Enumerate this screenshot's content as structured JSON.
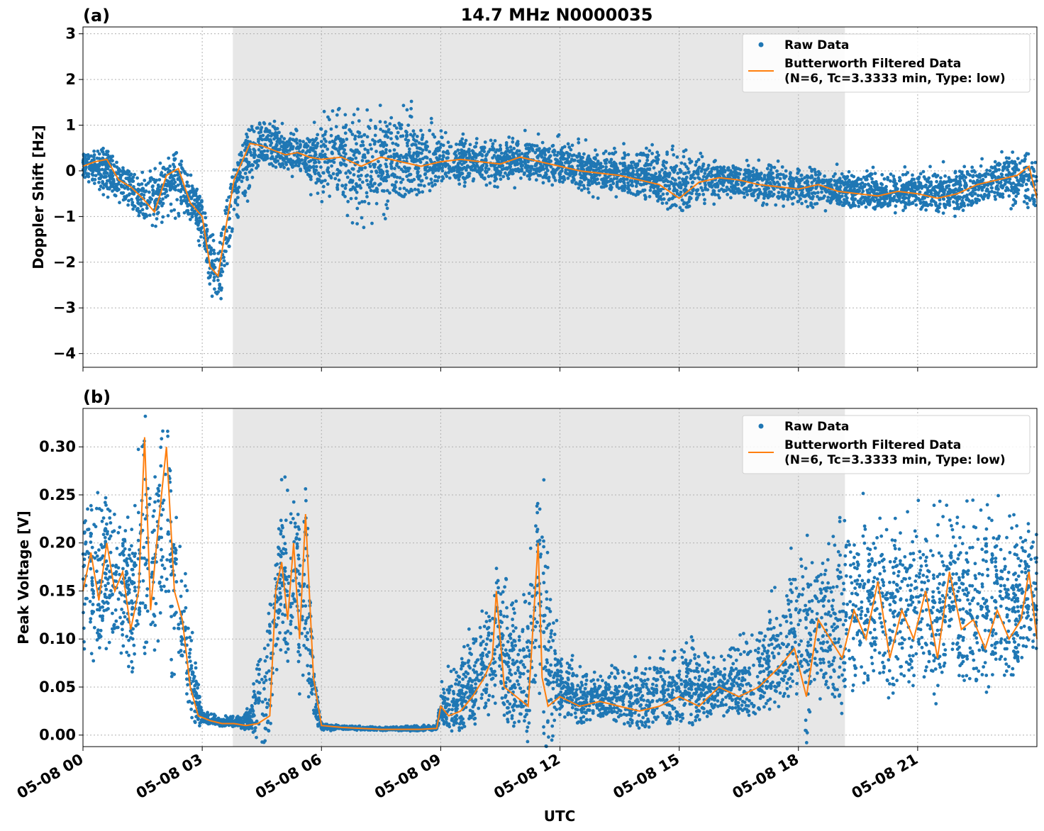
{
  "figure": {
    "title": "14.7 MHz N0000035",
    "xlabel": "UTC",
    "x_ticks": [
      "05-08 00",
      "05-08 03",
      "05-08 06",
      "05-08 09",
      "05-08 12",
      "05-08 15",
      "05-08 18",
      "05-08 21"
    ]
  },
  "colors": {
    "raw": "#1f77b4",
    "filtered": "#ff7f0e",
    "shade": "#e7e7e7",
    "grid": "#b0b0b0"
  },
  "chart_data": [
    {
      "type": "scatter",
      "panel_label": "(a)",
      "ylabel": "Doppler Shift [Hz]",
      "xlim_hours": [
        0,
        24
      ],
      "ylim": [
        -4.3,
        3.15
      ],
      "y_ticks": [
        3,
        2,
        1,
        0,
        -1,
        -2,
        -3,
        -4
      ],
      "y_tick_labels": [
        "3",
        "2",
        "1",
        "0",
        "−1",
        "−2",
        "−3",
        "−4"
      ],
      "shaded_span_hours": [
        3.77,
        19.17
      ],
      "grid": true,
      "legend": {
        "position": "top-right",
        "entries": [
          "Raw Data",
          "Butterworth Filtered Data",
          "(N=6, Tc=3.3333 min, Type: low)"
        ]
      },
      "series": [
        {
          "name": "Butterworth Filtered Data",
          "style": "line",
          "x_hours": [
            0,
            0.3,
            0.6,
            0.9,
            1.2,
            1.5,
            1.8,
            2.1,
            2.4,
            2.7,
            3.0,
            3.2,
            3.4,
            3.6,
            3.8,
            4.0,
            4.2,
            4.5,
            4.8,
            5.1,
            5.4,
            5.7,
            6.0,
            6.5,
            7.0,
            7.5,
            8.0,
            8.5,
            9.0,
            9.5,
            10.0,
            10.5,
            11.0,
            11.5,
            12.0,
            12.5,
            13.0,
            13.5,
            14.0,
            14.5,
            15.0,
            15.5,
            16.0,
            16.5,
            17.0,
            17.5,
            18.0,
            18.5,
            19.0,
            19.5,
            20.0,
            20.5,
            21.0,
            21.5,
            22.0,
            22.5,
            23.0,
            23.5,
            23.8,
            24.0
          ],
          "y": [
            0.1,
            0.2,
            0.25,
            -0.2,
            -0.35,
            -0.6,
            -0.9,
            -0.1,
            0.05,
            -0.7,
            -1.0,
            -2.1,
            -2.3,
            -1.2,
            -0.2,
            0.2,
            0.6,
            0.55,
            0.45,
            0.35,
            0.4,
            0.3,
            0.25,
            0.3,
            0.1,
            0.3,
            0.2,
            0.1,
            0.2,
            0.25,
            0.2,
            0.15,
            0.3,
            0.2,
            0.1,
            0.0,
            -0.05,
            -0.1,
            -0.2,
            -0.3,
            -0.6,
            -0.25,
            -0.15,
            -0.2,
            -0.3,
            -0.35,
            -0.4,
            -0.3,
            -0.45,
            -0.5,
            -0.55,
            -0.45,
            -0.5,
            -0.6,
            -0.5,
            -0.3,
            -0.2,
            -0.1,
            0.1,
            -0.6
          ]
        },
        {
          "name": "Raw Data",
          "style": "markers",
          "envelope_hours": [
            0,
            1.5,
            2.5,
            3.0,
            3.4,
            3.8,
            4.5,
            5.5,
            6.0,
            7.0,
            8.0,
            9.0,
            10.0,
            11.0,
            12.0,
            13.0,
            14.0,
            15.0,
            16.0,
            17.0,
            18.0,
            19.0,
            20.0,
            21.0,
            22.0,
            23.0,
            24.0
          ],
          "envelope_upper": [
            0.6,
            0.3,
            0.5,
            -0.2,
            -1.5,
            0.3,
            1.6,
            1.0,
            1.6,
            2.0,
            1.9,
            1.2,
            0.9,
            1.0,
            0.9,
            0.7,
            0.8,
            0.7,
            0.5,
            0.4,
            0.3,
            0.3,
            0.2,
            0.2,
            0.4,
            0.6,
            0.5
          ],
          "envelope_lower": [
            -0.3,
            -1.5,
            -1.2,
            -1.9,
            -3.7,
            -1.6,
            -0.2,
            -0.3,
            -1.2,
            -1.8,
            -1.4,
            -0.7,
            -0.6,
            -0.5,
            -0.6,
            -0.7,
            -0.8,
            -1.0,
            -0.8,
            -0.9,
            -1.0,
            -1.0,
            -1.0,
            -1.0,
            -1.2,
            -1.0,
            -1.2
          ]
        }
      ]
    },
    {
      "type": "scatter",
      "panel_label": "(b)",
      "ylabel": "Peak Voltage [V]",
      "xlim_hours": [
        0,
        24
      ],
      "ylim": [
        -0.012,
        0.34
      ],
      "y_ticks": [
        0.3,
        0.25,
        0.2,
        0.15,
        0.1,
        0.05,
        0.0
      ],
      "y_tick_labels": [
        "0.30",
        "0.25",
        "0.20",
        "0.15",
        "0.10",
        "0.05",
        "0.00"
      ],
      "shaded_span_hours": [
        3.77,
        19.17
      ],
      "grid": true,
      "legend": {
        "position": "top-right",
        "entries": [
          "Raw Data",
          "Butterworth Filtered Data",
          "(N=6, Tc=3.3333 min, Type: low)"
        ]
      },
      "series": [
        {
          "name": "Butterworth Filtered Data",
          "style": "line",
          "x_hours": [
            0,
            0.2,
            0.4,
            0.6,
            0.8,
            1.0,
            1.2,
            1.4,
            1.55,
            1.7,
            1.9,
            2.1,
            2.3,
            2.5,
            2.7,
            2.9,
            3.2,
            3.5,
            3.8,
            4.1,
            4.4,
            4.7,
            4.85,
            5.0,
            5.15,
            5.3,
            5.45,
            5.6,
            5.8,
            6.0,
            6.5,
            7.0,
            7.5,
            8.0,
            8.5,
            8.9,
            9.0,
            9.2,
            9.5,
            9.8,
            10.1,
            10.3,
            10.4,
            10.6,
            10.9,
            11.2,
            11.45,
            11.55,
            11.7,
            12.0,
            12.5,
            13.0,
            13.5,
            14.0,
            14.5,
            15.0,
            15.5,
            16.0,
            16.5,
            17.0,
            17.5,
            17.9,
            18.2,
            18.5,
            18.8,
            19.1,
            19.4,
            19.7,
            20.0,
            20.3,
            20.6,
            20.9,
            21.2,
            21.5,
            21.8,
            22.1,
            22.4,
            22.7,
            23.0,
            23.3,
            23.6,
            23.8,
            24.0
          ],
          "y": [
            0.15,
            0.19,
            0.14,
            0.2,
            0.15,
            0.17,
            0.11,
            0.15,
            0.31,
            0.13,
            0.22,
            0.3,
            0.15,
            0.12,
            0.05,
            0.02,
            0.015,
            0.012,
            0.012,
            0.01,
            0.012,
            0.02,
            0.15,
            0.18,
            0.12,
            0.2,
            0.1,
            0.23,
            0.06,
            0.01,
            0.008,
            0.007,
            0.006,
            0.006,
            0.006,
            0.007,
            0.03,
            0.02,
            0.025,
            0.04,
            0.06,
            0.08,
            0.15,
            0.05,
            0.04,
            0.03,
            0.2,
            0.06,
            0.03,
            0.04,
            0.03,
            0.035,
            0.03,
            0.025,
            0.03,
            0.04,
            0.03,
            0.05,
            0.04,
            0.05,
            0.07,
            0.09,
            0.04,
            0.12,
            0.1,
            0.08,
            0.13,
            0.1,
            0.16,
            0.08,
            0.13,
            0.1,
            0.15,
            0.08,
            0.17,
            0.11,
            0.12,
            0.09,
            0.13,
            0.1,
            0.12,
            0.17,
            0.1
          ]
        },
        {
          "name": "Raw Data",
          "style": "markers",
          "envelope_hours": [
            0,
            0.5,
            1.0,
            1.5,
            2.0,
            2.5,
            2.8,
            3.0,
            3.6,
            4.2,
            4.7,
            5.0,
            5.5,
            5.8,
            6.0,
            7.0,
            8.0,
            8.9,
            9.0,
            9.5,
            10.0,
            10.5,
            11.0,
            11.5,
            12.0,
            13.0,
            14.0,
            15.0,
            16.0,
            17.0,
            18.0,
            18.5,
            19.0,
            20.0,
            21.0,
            22.0,
            23.0,
            24.0
          ],
          "envelope_upper": [
            0.3,
            0.29,
            0.28,
            0.32,
            0.32,
            0.25,
            0.1,
            0.03,
            0.02,
            0.03,
            0.18,
            0.3,
            0.3,
            0.05,
            0.012,
            0.01,
            0.01,
            0.012,
            0.06,
            0.1,
            0.14,
            0.2,
            0.15,
            0.31,
            0.1,
            0.08,
            0.09,
            0.12,
            0.1,
            0.14,
            0.22,
            0.25,
            0.28,
            0.27,
            0.28,
            0.3,
            0.28,
            0.25
          ],
          "envelope_lower": [
            0.05,
            0.04,
            0.03,
            0.03,
            0.04,
            0.02,
            0.01,
            0.008,
            0.008,
            0.008,
            0.02,
            0.04,
            0.03,
            0.01,
            0.004,
            0.004,
            0.004,
            0.004,
            0.004,
            0.005,
            0.005,
            0.006,
            0.006,
            0.008,
            0.008,
            0.008,
            0.008,
            0.008,
            0.01,
            0.01,
            0.01,
            0.012,
            0.012,
            0.015,
            0.02,
            0.03,
            0.04,
            0.05
          ]
        }
      ]
    }
  ]
}
